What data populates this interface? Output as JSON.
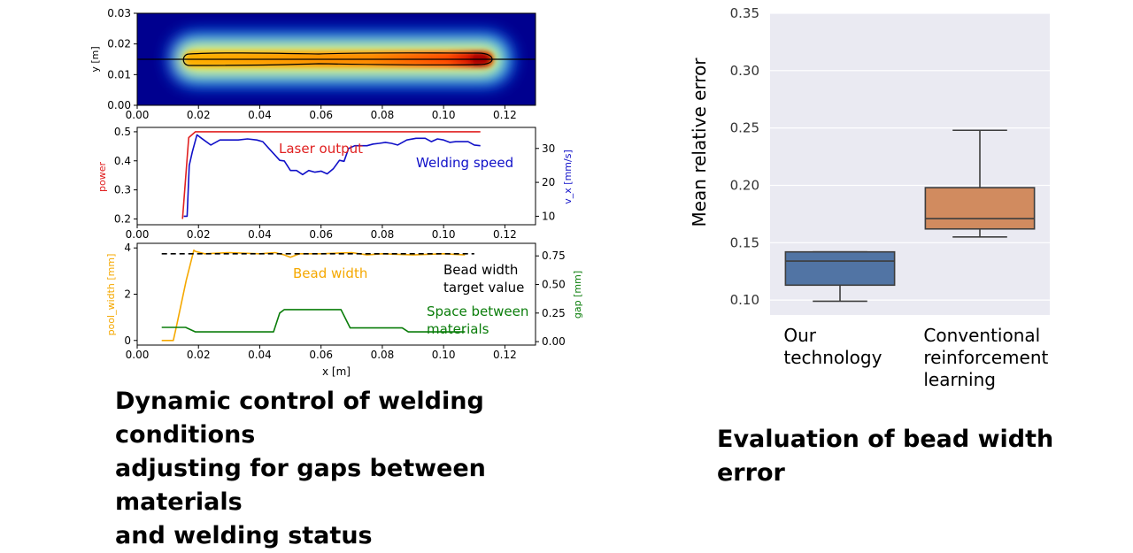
{
  "captions": {
    "left": "Dynamic control of welding conditions\nadjusting for gaps between materials\nand welding status",
    "right": "Evaluation of bead width error"
  },
  "chart_data": [
    {
      "type": "heatmap",
      "ylabel": "y [m]",
      "xlim": [
        0.0,
        0.13
      ],
      "ylim": [
        0.0,
        0.03
      ],
      "xticks": [
        "0.00",
        "0.02",
        "0.04",
        "0.06",
        "0.08",
        "0.10",
        "0.12"
      ],
      "yticks": [
        "0.00",
        "0.01",
        "0.02",
        "0.03"
      ],
      "colormap": "jet",
      "weld_line_y": 0.015,
      "weld_pool_x": [
        0.015,
        0.113
      ],
      "hot_spot_x": 0.11
    },
    {
      "type": "line",
      "xlim": [
        0.0,
        0.13
      ],
      "xticks": [
        "0.00",
        "0.02",
        "0.04",
        "0.06",
        "0.08",
        "0.10",
        "0.12"
      ],
      "ylabel_left": "power",
      "ylabel_right": "v_x [mm/s]",
      "ylim_left": [
        0.18,
        0.515
      ],
      "ylim_right": [
        7.5,
        36.2
      ],
      "yticks_left": [
        "0.2",
        "0.3",
        "0.4",
        "0.5"
      ],
      "yticks_right": [
        "10",
        "20",
        "30"
      ],
      "annotations": [
        "Laser output",
        "Welding  speed"
      ],
      "series": [
        {
          "name": "Laser output",
          "axis": "left",
          "color": "#e02020",
          "x": [
            0.0148,
            0.0168,
            0.019,
            0.112
          ],
          "y": [
            0.2,
            0.48,
            0.5,
            0.5
          ]
        },
        {
          "name": "Welding  speed",
          "axis": "right",
          "color": "#1010c8",
          "x": [
            0.0152,
            0.0163,
            0.017,
            0.018,
            0.0195,
            0.021,
            0.024,
            0.027,
            0.03,
            0.033,
            0.036,
            0.039,
            0.041,
            0.043,
            0.045,
            0.0465,
            0.048,
            0.05,
            0.052,
            0.054,
            0.056,
            0.058,
            0.06,
            0.062,
            0.064,
            0.066,
            0.0675,
            0.069,
            0.071,
            0.073,
            0.075,
            0.077,
            0.079,
            0.081,
            0.083,
            0.085,
            0.088,
            0.091,
            0.094,
            0.096,
            0.098,
            0.1,
            0.102,
            0.104,
            0.106,
            0.108,
            0.11,
            0.112
          ],
          "y": [
            10,
            10,
            25,
            29,
            34,
            33,
            31,
            32.5,
            32.5,
            32.5,
            32.8,
            32.5,
            32,
            30,
            28,
            26.5,
            26.3,
            23.5,
            23.5,
            22.3,
            23.5,
            23,
            23.3,
            22.5,
            24,
            26.5,
            26.2,
            30,
            30.8,
            30.8,
            30.8,
            31.3,
            31.5,
            31.8,
            31.5,
            31,
            32.5,
            33,
            33,
            32,
            32.8,
            32.5,
            31.8,
            32,
            32,
            32,
            31,
            30.8
          ]
        }
      ]
    },
    {
      "type": "line",
      "xlabel": "x [m]",
      "xlim": [
        0.0,
        0.13
      ],
      "xticks": [
        "0.00",
        "0.02",
        "0.04",
        "0.06",
        "0.08",
        "0.10",
        "0.12"
      ],
      "ylabel_left": "pool_width [mm]",
      "ylabel_right": "gap [mm]",
      "ylim_left": [
        -0.2,
        4.2
      ],
      "ylim_right": [
        -0.03,
        0.86
      ],
      "yticks_left": [
        "0",
        "2",
        "4"
      ],
      "yticks_right": [
        "0.00",
        "0.25",
        "0.50",
        "0.75"
      ],
      "annotations": [
        "Bead  width",
        "Bead width\ntarget value",
        "Space between\nmaterials"
      ],
      "series": [
        {
          "name": "Bead  width",
          "axis": "left",
          "color": "#f5a800",
          "x": [
            0.008,
            0.0118,
            0.0128,
            0.016,
            0.0185,
            0.019,
            0.022,
            0.03,
            0.04,
            0.045,
            0.048,
            0.05,
            0.053,
            0.06,
            0.07,
            0.075,
            0.08,
            0.09,
            0.1,
            0.107
          ],
          "y": [
            0.0,
            0.0,
            0.6,
            2.6,
            3.9,
            3.85,
            3.75,
            3.8,
            3.75,
            3.8,
            3.7,
            3.6,
            3.75,
            3.75,
            3.8,
            3.7,
            3.75,
            3.7,
            3.75,
            3.7
          ]
        },
        {
          "name": "Space between\nmaterials",
          "axis": "right",
          "color": "#0a7d0a",
          "x": [
            0.008,
            0.0158,
            0.019,
            0.0445,
            0.0465,
            0.048,
            0.0665,
            0.0695,
            0.0865,
            0.0885,
            0.107
          ],
          "y": [
            0.125,
            0.125,
            0.085,
            0.085,
            0.25,
            0.28,
            0.28,
            0.12,
            0.12,
            0.085,
            0.085
          ]
        },
        {
          "name": "Bead width\ntarget value",
          "axis": "left",
          "color": "#000000",
          "dash": true,
          "x": [
            0.008,
            0.11
          ],
          "y": [
            3.75,
            3.75
          ]
        }
      ]
    },
    {
      "type": "box",
      "ylabel": "Mean relative error",
      "ylim": [
        0.087,
        0.35
      ],
      "yticks": [
        "0.10",
        "0.15",
        "0.20",
        "0.25",
        "0.30",
        "0.35"
      ],
      "background": "#eaeaf2",
      "categories": [
        "Our\ntechnology",
        "Conventional\nreinforcement\nlearning"
      ],
      "boxes": [
        {
          "whisker_low": 0.099,
          "q1": 0.113,
          "median": 0.134,
          "q3": 0.142,
          "whisker_high": 0.142,
          "color": "#5174a4"
        },
        {
          "whisker_low": 0.155,
          "q1": 0.162,
          "median": 0.171,
          "q3": 0.198,
          "whisker_high": 0.248,
          "color": "#d18b5f"
        }
      ]
    }
  ]
}
